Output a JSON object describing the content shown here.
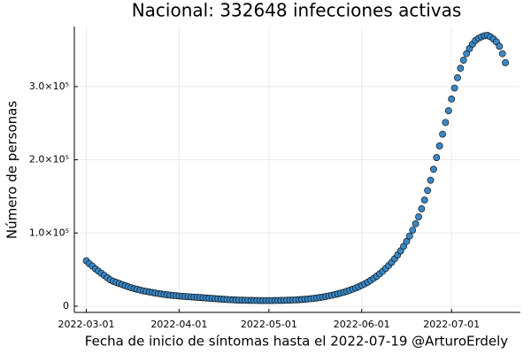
{
  "chart_data": {
    "type": "scatter",
    "title": "Nacional:  332648 infecciones activas",
    "x_label": "Fecha de inicio de síntomas hasta el 2022-07-19 @ArturoErdely",
    "y_label": "Número de personas",
    "color": "#3b87c4",
    "grid": true,
    "xlim": [
      "2022-02-25",
      "2022-07-24"
    ],
    "xticks": [
      "2022-03-01",
      "2022-04-01",
      "2022-05-01",
      "2022-06-01",
      "2022-07-01"
    ],
    "ylim": [
      -8500,
      382000
    ],
    "yticks": [
      0,
      {
        "value": 100000,
        "label": "1.0×10⁵"
      },
      {
        "value": 200000,
        "label": "2.0×10⁵"
      },
      {
        "value": 300000,
        "label": "3.0×10⁵"
      }
    ],
    "x": [
      "2022-03-01",
      "2022-03-02",
      "2022-03-03",
      "2022-03-04",
      "2022-03-05",
      "2022-03-06",
      "2022-03-07",
      "2022-03-08",
      "2022-03-09",
      "2022-03-10",
      "2022-03-11",
      "2022-03-12",
      "2022-03-13",
      "2022-03-14",
      "2022-03-15",
      "2022-03-16",
      "2022-03-17",
      "2022-03-18",
      "2022-03-19",
      "2022-03-20",
      "2022-03-21",
      "2022-03-22",
      "2022-03-23",
      "2022-03-24",
      "2022-03-25",
      "2022-03-26",
      "2022-03-27",
      "2022-03-28",
      "2022-03-29",
      "2022-03-30",
      "2022-03-31",
      "2022-04-01",
      "2022-04-02",
      "2022-04-03",
      "2022-04-04",
      "2022-04-05",
      "2022-04-06",
      "2022-04-07",
      "2022-04-08",
      "2022-04-09",
      "2022-04-10",
      "2022-04-11",
      "2022-04-12",
      "2022-04-13",
      "2022-04-14",
      "2022-04-15",
      "2022-04-16",
      "2022-04-17",
      "2022-04-18",
      "2022-04-19",
      "2022-04-20",
      "2022-04-21",
      "2022-04-22",
      "2022-04-23",
      "2022-04-24",
      "2022-04-25",
      "2022-04-26",
      "2022-04-27",
      "2022-04-28",
      "2022-04-29",
      "2022-04-30",
      "2022-05-01",
      "2022-05-02",
      "2022-05-03",
      "2022-05-04",
      "2022-05-05",
      "2022-05-06",
      "2022-05-07",
      "2022-05-08",
      "2022-05-09",
      "2022-05-10",
      "2022-05-11",
      "2022-05-12",
      "2022-05-13",
      "2022-05-14",
      "2022-05-15",
      "2022-05-16",
      "2022-05-17",
      "2022-05-18",
      "2022-05-19",
      "2022-05-20",
      "2022-05-21",
      "2022-05-22",
      "2022-05-23",
      "2022-05-24",
      "2022-05-25",
      "2022-05-26",
      "2022-05-27",
      "2022-05-28",
      "2022-05-29",
      "2022-05-30",
      "2022-05-31",
      "2022-06-01",
      "2022-06-02",
      "2022-06-03",
      "2022-06-04",
      "2022-06-05",
      "2022-06-06",
      "2022-06-07",
      "2022-06-08",
      "2022-06-09",
      "2022-06-10",
      "2022-06-11",
      "2022-06-12",
      "2022-06-13",
      "2022-06-14",
      "2022-06-15",
      "2022-06-16",
      "2022-06-17",
      "2022-06-18",
      "2022-06-19",
      "2022-06-20",
      "2022-06-21",
      "2022-06-22",
      "2022-06-23",
      "2022-06-24",
      "2022-06-25",
      "2022-06-26",
      "2022-06-27",
      "2022-06-28",
      "2022-06-29",
      "2022-06-30",
      "2022-07-01",
      "2022-07-02",
      "2022-07-03",
      "2022-07-04",
      "2022-07-05",
      "2022-07-06",
      "2022-07-07",
      "2022-07-08",
      "2022-07-09",
      "2022-07-10",
      "2022-07-11",
      "2022-07-12",
      "2022-07-13",
      "2022-07-14",
      "2022-07-15",
      "2022-07-16",
      "2022-07-17",
      "2022-07-18",
      "2022-07-19"
    ],
    "values": [
      62000,
      58000,
      55000,
      51000,
      48000,
      45000,
      42000,
      39000,
      36000,
      34000,
      32500,
      31000,
      29500,
      28000,
      26500,
      25200,
      24000,
      23000,
      22000,
      21000,
      20200,
      19400,
      18700,
      18000,
      17300,
      16700,
      16100,
      15600,
      15100,
      14700,
      14300,
      13900,
      13600,
      13300,
      13000,
      12700,
      12400,
      12100,
      11800,
      11500,
      11200,
      10900,
      10600,
      10300,
      10000,
      9700,
      9400,
      9100,
      8900,
      8700,
      8500,
      8300,
      8200,
      8100,
      8000,
      7900,
      7800,
      7800,
      7700,
      7700,
      7700,
      7700,
      7700,
      7800,
      7800,
      7900,
      8000,
      8100,
      8200,
      8400,
      8600,
      8800,
      9100,
      9400,
      9800,
      10200,
      10700,
      11200,
      11800,
      12500,
      13200,
      14000,
      14900,
      15800,
      16800,
      17900,
      19000,
      20300,
      21700,
      23200,
      24800,
      26500,
      28500,
      30500,
      32800,
      35300,
      38000,
      41000,
      44200,
      47700,
      51500,
      55600,
      60000,
      64800,
      70000,
      75600,
      81700,
      88500,
      95800,
      103800,
      112500,
      122000,
      133000,
      145000,
      158000,
      172000,
      187000,
      203000,
      219000,
      235000,
      251000,
      267000,
      283000,
      298000,
      312000,
      325000,
      336000,
      345000,
      352000,
      358000,
      363000,
      366000,
      368000,
      369500,
      370000,
      368000,
      365000,
      361000,
      355000,
      345000,
      332648
    ]
  }
}
